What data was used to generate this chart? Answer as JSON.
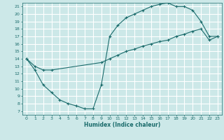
{
  "xlabel": "Humidex (Indice chaleur)",
  "bg_color": "#cce8e8",
  "grid_color": "#ffffff",
  "line_color": "#1a6b6b",
  "xlim": [
    -0.5,
    23.5
  ],
  "ylim": [
    6.5,
    21.5
  ],
  "xticks": [
    0,
    1,
    2,
    3,
    4,
    5,
    6,
    7,
    8,
    9,
    10,
    11,
    12,
    13,
    14,
    15,
    16,
    17,
    18,
    19,
    20,
    21,
    22,
    23
  ],
  "yticks": [
    7,
    8,
    9,
    10,
    11,
    12,
    13,
    14,
    15,
    16,
    17,
    18,
    19,
    20,
    21
  ],
  "curve1_x": [
    0,
    1,
    2,
    3,
    4,
    5,
    6,
    7,
    8,
    9,
    10,
    11,
    12,
    13,
    14,
    15,
    16,
    17,
    18,
    19,
    20,
    21,
    22,
    23
  ],
  "curve1_y": [
    14.0,
    12.5,
    10.5,
    9.5,
    8.5,
    8.0,
    7.7,
    7.3,
    7.3,
    10.5,
    17.0,
    18.5,
    19.5,
    20.0,
    20.5,
    21.0,
    21.3,
    21.5,
    21.0,
    21.0,
    20.5,
    19.0,
    17.0,
    17.0
  ],
  "curve2_x": [
    0,
    1,
    2,
    3,
    9,
    10,
    11,
    12,
    13,
    14,
    15,
    16,
    17,
    18,
    19,
    20,
    21,
    22,
    23
  ],
  "curve2_y": [
    14.0,
    13.0,
    12.5,
    12.5,
    13.5,
    14.0,
    14.5,
    15.0,
    15.3,
    15.7,
    16.0,
    16.3,
    16.5,
    17.0,
    17.3,
    17.7,
    18.0,
    16.5,
    17.0
  ]
}
